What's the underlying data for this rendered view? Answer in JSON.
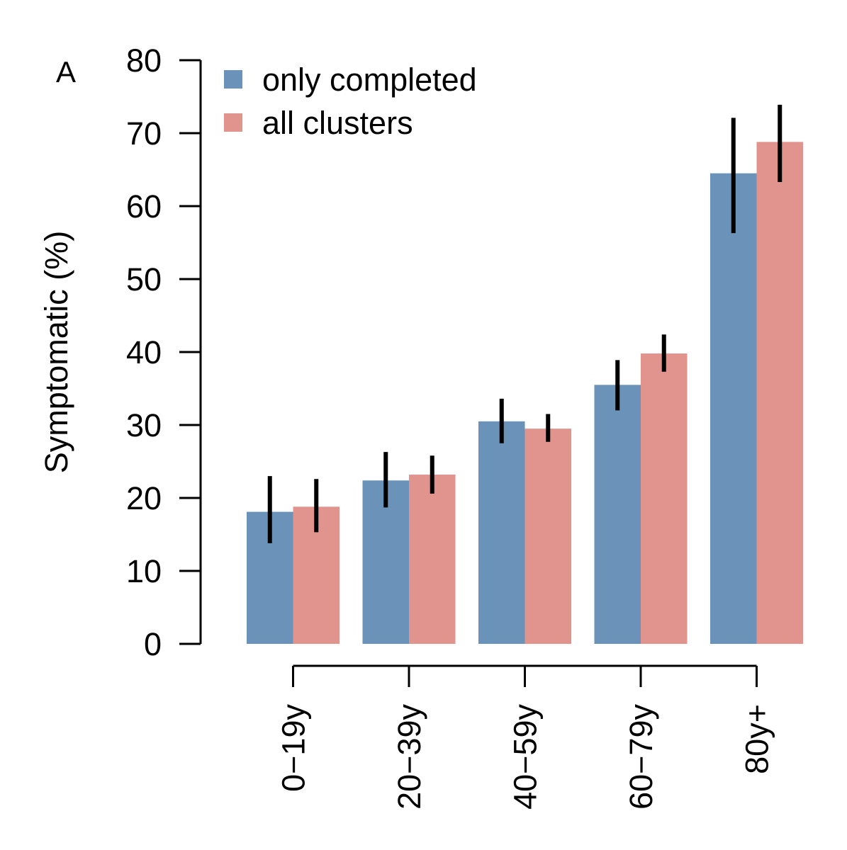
{
  "panel_label": "A",
  "chart_data": {
    "type": "bar",
    "title": "",
    "xlabel": "",
    "ylabel": "Symptomatic (%)",
    "ylim": [
      0,
      80
    ],
    "yticks": [
      0,
      10,
      20,
      30,
      40,
      50,
      60,
      70,
      80
    ],
    "categories": [
      "0−19y",
      "20−39y",
      "40−59y",
      "60−79y",
      "80y+"
    ],
    "series": [
      {
        "name": "only completed",
        "color": "#6b93b9",
        "values": [
          18.1,
          22.4,
          30.5,
          35.5,
          64.5
        ],
        "ci_low": [
          13.8,
          18.7,
          27.5,
          32.0,
          56.3
        ],
        "ci_high": [
          23.0,
          26.3,
          33.6,
          38.9,
          72.1
        ]
      },
      {
        "name": "all clusters",
        "color": "#e1938e",
        "values": [
          18.8,
          23.2,
          29.5,
          39.8,
          68.8
        ],
        "ci_low": [
          15.3,
          20.6,
          27.7,
          37.3,
          63.3
        ],
        "ci_high": [
          22.6,
          25.8,
          31.5,
          42.4,
          73.9
        ]
      }
    ],
    "legend_position": "top-left",
    "grid": false,
    "x_tick_label_orientation": "vertical"
  }
}
